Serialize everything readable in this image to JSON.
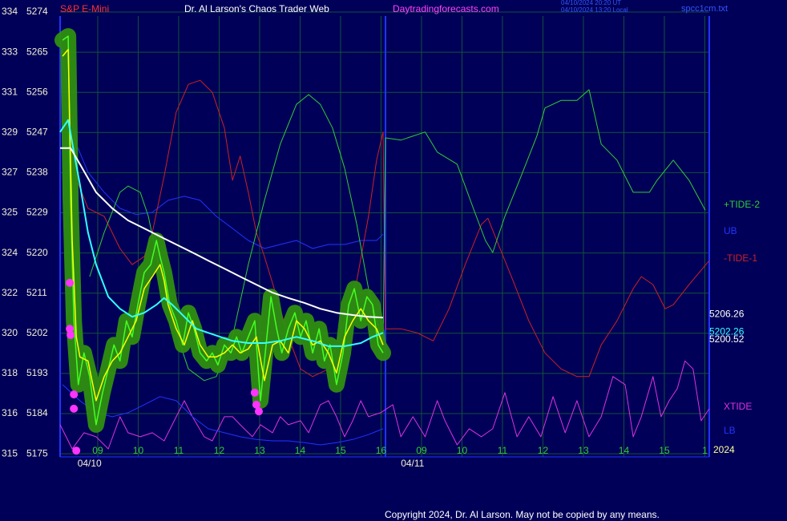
{
  "chart_data": {
    "type": "line",
    "title": "Dr. Al Larson's Chaos Trader Web",
    "instrument": "S&P E-Mini",
    "site": "Daytradingforecasts.com",
    "timestamps": [
      "04/10/2024 20:20 UT",
      "04/10/2024 13:20 Local"
    ],
    "file": "spcc1cm.txt",
    "copyright": "Copyright 2024, Dr. Al Larson. May not be copied by any means.",
    "year": "2024",
    "xlim": [
      8.07,
      24.11
    ],
    "ylim": [
      5174.3,
      5273.1
    ],
    "xticks": [
      {
        "value": 9,
        "label": "09"
      },
      10,
      11,
      12,
      13,
      14,
      15,
      16,
      {
        "value": 17,
        "label": "09"
      },
      {
        "value": 18,
        "label": "10"
      },
      {
        "value": 19,
        "label": "11"
      },
      {
        "value": 20,
        "label": "12"
      },
      {
        "value": 21,
        "label": "13"
      },
      {
        "value": 22,
        "label": "14"
      },
      {
        "value": 23,
        "label": "15"
      },
      {
        "value": 24,
        "label": "1"
      }
    ],
    "date_labels": [
      {
        "value": 8.5,
        "label": "04/10"
      },
      {
        "value": 16.49,
        "label": "04/11"
      }
    ],
    "yticks": [
      5274,
      5265,
      5256,
      5247,
      5238,
      5229,
      5220,
      5211,
      5202,
      5193,
      5184,
      5175
    ],
    "etf_labels": [
      "334",
      "333",
      "331",
      "329",
      "327",
      "325",
      "324",
      "322",
      "320",
      "318",
      "316",
      "315"
    ],
    "grid": true,
    "now_line": 16.11,
    "last_values": [
      {
        "value": 5206.26,
        "color": "#ffffff"
      },
      {
        "value": 5202.26,
        "color": "#33ffff"
      },
      {
        "value": 5200.52,
        "color": "#ffffff"
      }
    ],
    "series": [
      {
        "name": "XTIDE",
        "color": "#dd33dd",
        "x": [
          8.07,
          8.37,
          8.66,
          8.96,
          9.26,
          9.55,
          9.75,
          10.05,
          10.35,
          10.64,
          10.84,
          11.14,
          11.34,
          11.63,
          11.83,
          12.13,
          12.33,
          12.52,
          12.82,
          13.02,
          13.32,
          13.51,
          13.71,
          14.01,
          14.21,
          14.5,
          14.7,
          14.9,
          15.1,
          15.3,
          15.5,
          15.69,
          15.99,
          16.29,
          16.49,
          16.79,
          17.09,
          17.39,
          17.58,
          17.88,
          18.18,
          18.48,
          18.76,
          19.06,
          19.36,
          19.65,
          19.95,
          20.25,
          20.55,
          20.84,
          21.14,
          21.44,
          21.73,
          22.03,
          22.23,
          22.43,
          22.72,
          22.92,
          23.12,
          23.32,
          23.51,
          23.71,
          23.91,
          24.11
        ],
        "values": [
          5181.5,
          5176.1,
          5179.7,
          5178.8,
          5176.1,
          5183.3,
          5179.7,
          5178.8,
          5179.7,
          5177.9,
          5181.5,
          5186.9,
          5183.3,
          5178.8,
          5177.9,
          5183.3,
          5183.3,
          5181.5,
          5178.8,
          5181.5,
          5179.7,
          5183.3,
          5181.5,
          5182.4,
          5179.7,
          5186.0,
          5186.9,
          5183.3,
          5178.8,
          5182.4,
          5186.9,
          5183.3,
          5184.2,
          5186.0,
          5178.8,
          5183.3,
          5178.8,
          5186.9,
          5182.4,
          5177.0,
          5180.6,
          5178.8,
          5180.6,
          5188.7,
          5178.8,
          5183.3,
          5178.8,
          5187.8,
          5179.7,
          5186.9,
          5178.8,
          5183.3,
          5192.3,
          5190.5,
          5178.8,
          5183.3,
          5192.3,
          5183.3,
          5186.9,
          5189.6,
          5195.8,
          5194.0,
          5182.4,
          5185.1
        ]
      },
      {
        "name": "LB",
        "color": "#2233ff",
        "x": [
          8.13,
          8.56,
          8.96,
          9.36,
          9.75,
          10.15,
          10.54,
          10.94,
          11.34,
          11.73,
          12.13,
          12.52,
          12.92,
          13.32,
          13.71,
          14.11,
          14.5,
          14.9,
          15.3,
          15.69,
          16.05
        ],
        "values": [
          5190.5,
          5186.9,
          5184.2,
          5183.3,
          5184.2,
          5186.0,
          5187.8,
          5186.9,
          5183.3,
          5180.6,
          5179.7,
          5178.8,
          5178.2,
          5177.9,
          5177.9,
          5177.5,
          5177.0,
          5177.5,
          5178.2,
          5179.3,
          5180.6
        ]
      },
      {
        "name": "UB",
        "color": "#2233ff",
        "x": [
          8.07,
          8.27,
          8.47,
          8.76,
          9.16,
          9.55,
          9.95,
          10.35,
          10.74,
          11.14,
          11.53,
          11.93,
          12.33,
          12.72,
          13.12,
          13.51,
          13.91,
          14.31,
          14.7,
          15.1,
          15.5,
          15.89,
          16.05
        ],
        "values": [
          5267.7,
          5255.1,
          5244.4,
          5238.1,
          5233.6,
          5230.0,
          5228.6,
          5229.1,
          5231.8,
          5232.7,
          5231.8,
          5228.2,
          5225.5,
          5222.8,
          5221.0,
          5221.9,
          5222.8,
          5221.0,
          5221.9,
          5221.9,
          5222.8,
          5222.8,
          5224.2
        ]
      },
      {
        "name": "-TIDE-1",
        "color": "#cc2222",
        "x": [
          8.37,
          8.76,
          9.16,
          9.55,
          9.85,
          10.15,
          10.35,
          10.64,
          10.94,
          11.24,
          11.53,
          11.83,
          12.13,
          12.33,
          12.52,
          12.72,
          12.92,
          13.12,
          13.42,
          13.71,
          14.01,
          14.31,
          14.7,
          15.1,
          15.4,
          15.69,
          15.89,
          16.05,
          16.11,
          16.49,
          16.89,
          17.29,
          17.68,
          18.08,
          18.48,
          18.64,
          18.86,
          19.26,
          19.65,
          20.05,
          20.45,
          20.84,
          21.14,
          21.44,
          21.83,
          22.23,
          22.43,
          22.72,
          23.02,
          23.22,
          23.61,
          24.11
        ],
        "values": [
          5239.0,
          5230.0,
          5228.2,
          5221.0,
          5217.4,
          5219.2,
          5224.6,
          5237.2,
          5251.6,
          5257.8,
          5258.7,
          5256.0,
          5248.0,
          5236.3,
          5241.7,
          5233.6,
          5224.6,
          5219.2,
          5210.2,
          5201.2,
          5194.0,
          5192.3,
          5194.0,
          5204.8,
          5213.8,
          5228.2,
          5240.8,
          5247.1,
          5203.0,
          5203.0,
          5202.1,
          5200.3,
          5207.5,
          5217.4,
          5226.4,
          5227.8,
          5222.8,
          5213.8,
          5204.8,
          5197.6,
          5194.0,
          5192.3,
          5192.3,
          5199.4,
          5204.8,
          5212.0,
          5214.7,
          5212.9,
          5207.5,
          5208.4,
          5212.9,
          5218.3
        ]
      },
      {
        "name": "+TIDE-2",
        "color": "#33cc33",
        "x": [
          8.8,
          9.16,
          9.55,
          9.75,
          10.05,
          10.25,
          10.54,
          10.84,
          11.24,
          11.63,
          11.93,
          12.33,
          12.72,
          13.12,
          13.51,
          13.91,
          14.21,
          14.5,
          14.8,
          15.1,
          15.4,
          15.69,
          16.05,
          16.11,
          16.49,
          17.09,
          17.39,
          17.88,
          18.28,
          18.58,
          18.76,
          19.06,
          19.46,
          19.85,
          20.05,
          20.45,
          20.84,
          21.14,
          21.44,
          21.83,
          22.23,
          22.63,
          22.82,
          23.22,
          23.61,
          24.01
        ],
        "values": [
          5214.7,
          5224.6,
          5233.6,
          5235.0,
          5233.6,
          5228.2,
          5215.6,
          5204.8,
          5194.0,
          5191.4,
          5192.3,
          5201.2,
          5217.4,
          5231.8,
          5244.4,
          5253.3,
          5255.5,
          5253.3,
          5248.0,
          5239.0,
          5226.4,
          5212.0,
          5199.4,
          5245.8,
          5245.3,
          5247.1,
          5242.6,
          5239.9,
          5230.0,
          5222.8,
          5220.1,
          5228.2,
          5237.2,
          5246.2,
          5252.5,
          5254.2,
          5254.2,
          5256.6,
          5244.4,
          5240.8,
          5233.6,
          5233.6,
          5236.3,
          5240.8,
          5236.3,
          5229.6
        ]
      },
      {
        "color": "#44ff22",
        "highlight": "#2f8f10",
        "x": [
          8.13,
          8.27,
          8.33,
          8.41,
          8.52,
          8.66,
          8.8,
          8.96,
          9.12,
          9.26,
          9.4,
          9.55,
          9.71,
          9.85,
          9.99,
          10.15,
          10.31,
          10.45,
          10.54,
          10.64,
          10.78,
          10.94,
          11.1,
          11.24,
          11.38,
          11.53,
          11.69,
          11.83,
          11.97,
          12.13,
          12.29,
          12.43,
          12.56,
          12.72,
          12.88,
          13.02,
          13.16,
          13.28,
          13.42,
          13.55,
          13.71,
          13.87,
          14.01,
          14.15,
          14.31,
          14.47,
          14.6,
          14.74,
          14.9,
          15.06,
          15.2,
          15.34,
          15.5,
          15.65,
          15.79,
          15.93,
          16.05
        ],
        "values": [
          5267.7,
          5268.6,
          5231.8,
          5204.8,
          5190.5,
          5197.6,
          5192.3,
          5181.5,
          5188.7,
          5194.0,
          5199.4,
          5195.8,
          5204.8,
          5201.2,
          5208.4,
          5215.6,
          5217.4,
          5222.8,
          5219.2,
          5215.6,
          5208.4,
          5204.8,
          5199.4,
          5206.6,
          5203.0,
          5197.6,
          5195.8,
          5197.6,
          5194.9,
          5199.4,
          5197.6,
          5201.2,
          5197.6,
          5201.2,
          5204.8,
          5186.9,
          5199.4,
          5210.2,
          5203.0,
          5197.6,
          5203.0,
          5206.6,
          5201.2,
          5204.8,
          5197.6,
          5203.0,
          5195.8,
          5199.4,
          5190.5,
          5197.6,
          5208.4,
          5212.0,
          5204.8,
          5210.2,
          5208.4,
          5199.4,
          5197.6
        ]
      },
      {
        "color": "#ffff00",
        "x": [
          8.13,
          8.27,
          8.37,
          8.47,
          8.56,
          8.76,
          8.96,
          9.16,
          9.36,
          9.55,
          9.75,
          9.95,
          10.15,
          10.35,
          10.54,
          10.64,
          10.74,
          10.94,
          11.14,
          11.34,
          11.53,
          11.73,
          11.93,
          12.13,
          12.33,
          12.52,
          12.72,
          12.92,
          13.12,
          13.32,
          13.51,
          13.71,
          13.91,
          14.11,
          14.31,
          14.5,
          14.7,
          14.9,
          15.1,
          15.3,
          15.5,
          15.69,
          15.89,
          16.05
        ],
        "values": [
          5264.1,
          5265.6,
          5222.8,
          5201.2,
          5196.7,
          5195.8,
          5186.9,
          5192.3,
          5195.8,
          5197.6,
          5201.2,
          5204.8,
          5212.0,
          5214.7,
          5217.4,
          5213.8,
          5208.4,
          5203.0,
          5199.4,
          5204.8,
          5199.4,
          5196.7,
          5196.7,
          5197.6,
          5199.4,
          5197.6,
          5198.5,
          5201.2,
          5191.4,
          5199.4,
          5200.3,
          5197.6,
          5204.8,
          5203.0,
          5199.4,
          5200.3,
          5197.6,
          5193.1,
          5201.2,
          5204.8,
          5207.5,
          5204.8,
          5203.0,
          5199.4
        ]
      },
      {
        "color": "#33ffff",
        "x": [
          8.07,
          8.27,
          8.41,
          8.56,
          8.76,
          8.96,
          9.26,
          9.55,
          9.85,
          10.15,
          10.45,
          10.64,
          10.84,
          11.14,
          11.44,
          11.73,
          12.03,
          12.33,
          12.72,
          13.12,
          13.51,
          13.91,
          14.31,
          14.7,
          15.1,
          15.5,
          15.79,
          16.05
        ],
        "values": [
          5247.1,
          5249.8,
          5242.6,
          5235.4,
          5224.6,
          5217.4,
          5210.2,
          5207.5,
          5205.7,
          5206.6,
          5208.4,
          5209.9,
          5208.4,
          5205.7,
          5203.0,
          5202.1,
          5201.2,
          5200.3,
          5199.8,
          5199.8,
          5200.3,
          5201.2,
          5200.3,
          5199.1,
          5199.1,
          5199.8,
          5201.2,
          5202.1
        ]
      },
      {
        "color": "#ffffff",
        "x": [
          8.07,
          8.33,
          8.56,
          8.96,
          9.36,
          9.75,
          10.15,
          10.54,
          10.94,
          11.34,
          11.73,
          12.13,
          12.52,
          12.92,
          13.32,
          13.71,
          14.11,
          14.5,
          14.9,
          15.3,
          15.69,
          16.05
        ],
        "values": [
          5243.5,
          5243.5,
          5239.9,
          5233.6,
          5230.0,
          5227.3,
          5225.5,
          5223.7,
          5221.9,
          5220.1,
          5218.3,
          5216.5,
          5214.7,
          5212.9,
          5211.1,
          5209.9,
          5208.8,
          5207.5,
          5206.6,
          5206.1,
          5205.7,
          5205.5
        ]
      },
      {
        "color": "#ff33ff",
        "markers": true,
        "x": [
          8.31,
          8.31,
          8.33,
          8.41,
          8.41,
          8.47,
          12.88,
          12.92,
          12.98
        ],
        "values": [
          5213.3,
          5203.0,
          5201.6,
          5188.3,
          5185.1,
          5175.7,
          5188.7,
          5186.0,
          5184.5
        ]
      }
    ]
  }
}
